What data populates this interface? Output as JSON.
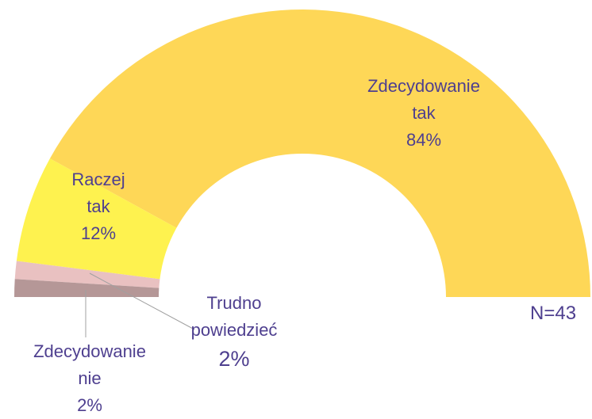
{
  "chart_data": {
    "type": "pie",
    "categories": [
      "Zdecydowanie nie",
      "Trudno powiedzieć",
      "Raczej tak",
      "Zdecydowanie tak"
    ],
    "values": [
      2,
      2,
      12,
      84
    ],
    "value_labels": [
      "2%",
      "2%",
      "12%",
      "84%"
    ],
    "colors": [
      "#b59797",
      "#e9c1c1",
      "#fef24f",
      "#fed757"
    ],
    "annotation": "N=43"
  }
}
